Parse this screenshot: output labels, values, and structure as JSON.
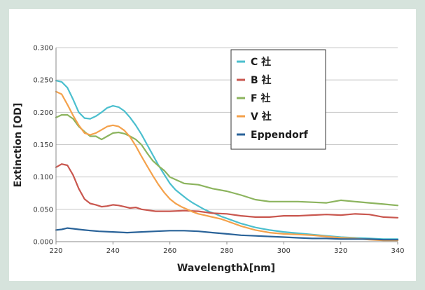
{
  "chart_data": {
    "type": "line",
    "xlabel": "Wavelengthλ[nm]",
    "ylabel": "Extinction [OD]",
    "xlim": [
      220,
      340
    ],
    "ylim": [
      0,
      0.3
    ],
    "x_ticks": [
      "220",
      "240",
      "260",
      "280",
      "300",
      "320",
      "340"
    ],
    "y_ticks": [
      "0.000",
      "0.050",
      "0.100",
      "0.150",
      "0.200",
      "0.250",
      "0.300"
    ],
    "grid": true,
    "legend_position": "top-right",
    "series": [
      {
        "name": "C 社",
        "color": "#4bbfce",
        "x": [
          220,
          222,
          224,
          226,
          228,
          230,
          232,
          234,
          236,
          238,
          240,
          242,
          244,
          246,
          248,
          250,
          252,
          254,
          256,
          258,
          260,
          262,
          264,
          266,
          268,
          270,
          272,
          274,
          276,
          278,
          280,
          285,
          290,
          295,
          300,
          305,
          310,
          315,
          320,
          325,
          330,
          335,
          340
        ],
        "y": [
          0.249,
          0.247,
          0.238,
          0.22,
          0.2,
          0.191,
          0.19,
          0.194,
          0.2,
          0.207,
          0.21,
          0.208,
          0.202,
          0.192,
          0.18,
          0.166,
          0.15,
          0.134,
          0.118,
          0.104,
          0.09,
          0.08,
          0.073,
          0.066,
          0.06,
          0.055,
          0.05,
          0.046,
          0.043,
          0.039,
          0.036,
          0.028,
          0.022,
          0.018,
          0.015,
          0.013,
          0.011,
          0.009,
          0.007,
          0.006,
          0.005,
          0.004,
          0.004
        ]
      },
      {
        "name": "B 社",
        "color": "#c9574f",
        "x": [
          220,
          222,
          224,
          226,
          228,
          230,
          232,
          234,
          236,
          238,
          240,
          242,
          244,
          246,
          248,
          250,
          255,
          260,
          265,
          270,
          275,
          280,
          285,
          290,
          295,
          300,
          305,
          310,
          315,
          320,
          325,
          330,
          335,
          340
        ],
        "y": [
          0.115,
          0.12,
          0.118,
          0.103,
          0.082,
          0.066,
          0.059,
          0.057,
          0.054,
          0.055,
          0.057,
          0.056,
          0.054,
          0.052,
          0.053,
          0.05,
          0.047,
          0.047,
          0.048,
          0.047,
          0.044,
          0.043,
          0.04,
          0.038,
          0.038,
          0.04,
          0.04,
          0.041,
          0.042,
          0.041,
          0.043,
          0.042,
          0.038,
          0.037
        ]
      },
      {
        "name": "F 社",
        "color": "#8cb45e",
        "x": [
          220,
          222,
          224,
          226,
          228,
          230,
          232,
          234,
          236,
          238,
          240,
          242,
          244,
          246,
          248,
          250,
          252,
          254,
          256,
          258,
          260,
          265,
          270,
          275,
          280,
          285,
          290,
          295,
          300,
          305,
          310,
          315,
          320,
          325,
          330,
          335,
          340
        ],
        "y": [
          0.192,
          0.196,
          0.196,
          0.19,
          0.178,
          0.17,
          0.163,
          0.163,
          0.158,
          0.163,
          0.168,
          0.169,
          0.167,
          0.163,
          0.158,
          0.15,
          0.137,
          0.125,
          0.117,
          0.11,
          0.1,
          0.09,
          0.088,
          0.082,
          0.078,
          0.072,
          0.065,
          0.062,
          0.062,
          0.062,
          0.061,
          0.06,
          0.064,
          0.062,
          0.06,
          0.058,
          0.056
        ]
      },
      {
        "name": "V 社",
        "color": "#f4a14b",
        "x": [
          220,
          222,
          224,
          226,
          228,
          230,
          232,
          234,
          236,
          238,
          240,
          242,
          244,
          246,
          248,
          250,
          252,
          254,
          256,
          258,
          260,
          262,
          264,
          266,
          268,
          270,
          272,
          274,
          276,
          278,
          280,
          285,
          290,
          295,
          300,
          305,
          310,
          315,
          320,
          325,
          330,
          335,
          340
        ],
        "y": [
          0.232,
          0.228,
          0.212,
          0.195,
          0.18,
          0.168,
          0.165,
          0.168,
          0.173,
          0.178,
          0.18,
          0.178,
          0.172,
          0.162,
          0.148,
          0.132,
          0.117,
          0.102,
          0.088,
          0.076,
          0.066,
          0.059,
          0.054,
          0.05,
          0.046,
          0.043,
          0.041,
          0.039,
          0.037,
          0.035,
          0.032,
          0.024,
          0.018,
          0.014,
          0.012,
          0.011,
          0.01,
          0.008,
          0.006,
          0.005,
          0.003,
          0.002,
          0.002
        ]
      },
      {
        "name": "Eppendorf",
        "color": "#2a6399",
        "x": [
          220,
          222,
          224,
          226,
          228,
          230,
          235,
          240,
          245,
          250,
          255,
          260,
          265,
          270,
          275,
          280,
          285,
          290,
          295,
          300,
          305,
          310,
          315,
          320,
          325,
          330,
          335,
          340
        ],
        "y": [
          0.018,
          0.019,
          0.021,
          0.02,
          0.019,
          0.018,
          0.016,
          0.015,
          0.014,
          0.015,
          0.016,
          0.017,
          0.017,
          0.016,
          0.014,
          0.012,
          0.01,
          0.009,
          0.008,
          0.007,
          0.006,
          0.005,
          0.005,
          0.004,
          0.004,
          0.004,
          0.003,
          0.003
        ]
      }
    ]
  }
}
